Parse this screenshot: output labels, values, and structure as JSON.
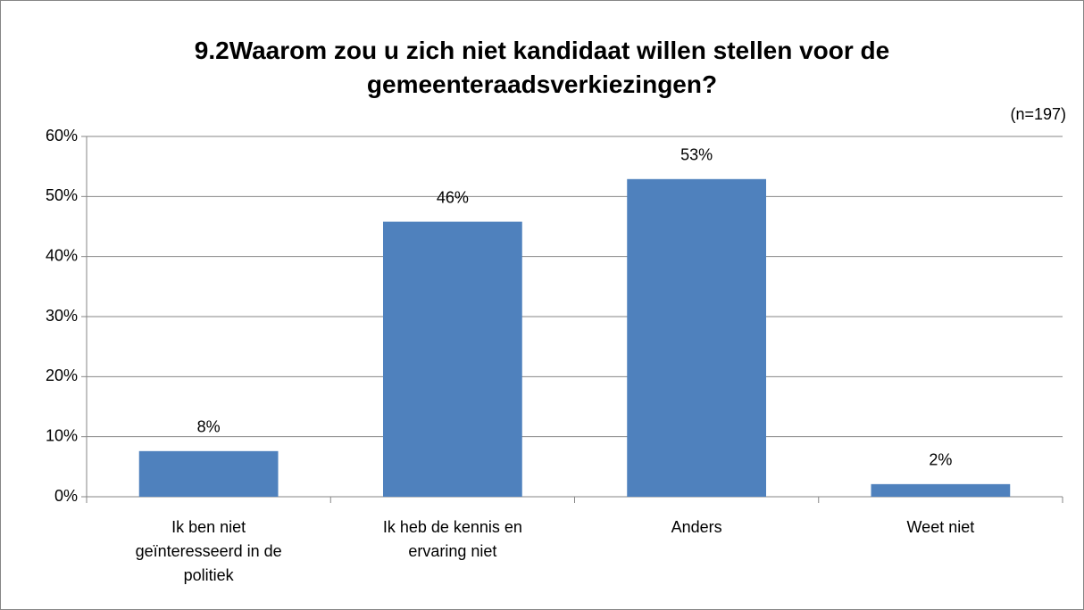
{
  "chart_data": {
    "type": "bar",
    "title": "9.2Waarom zou u zich niet kandidaat willen stellen voor de gemeenteraadsverkiezingen?",
    "subtitle": "(n=197)",
    "categories": [
      "Ik ben niet geïnteresseerd in de politiek",
      "Ik heb de kennis en ervaring niet",
      "Anders",
      "Weet niet"
    ],
    "values": [
      7.6,
      45.8,
      52.9,
      2.1
    ],
    "value_labels": [
      "8%",
      "46%",
      "53%",
      "2%"
    ],
    "color": "#4f81bd",
    "ylim": [
      0,
      60
    ],
    "yticks": [
      {
        "value": 0,
        "label": "0%"
      },
      {
        "value": 10,
        "label": "10%"
      },
      {
        "value": 20,
        "label": "20%"
      },
      {
        "value": 30,
        "label": "30%"
      },
      {
        "value": 40,
        "label": "40%"
      },
      {
        "value": 50,
        "label": "50%"
      },
      {
        "value": 60,
        "label": "60%"
      }
    ],
    "grid": true
  }
}
